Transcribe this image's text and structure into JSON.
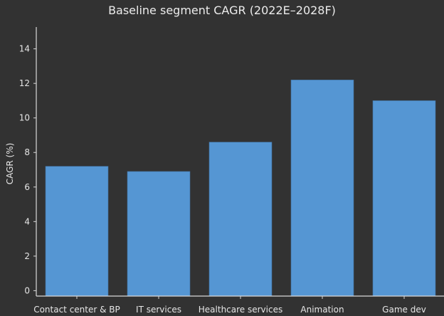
{
  "chart_data": {
    "type": "bar",
    "title": "Baseline segment CAGR (2022E–2028F)",
    "xlabel": "",
    "ylabel": "CAGR (%)",
    "categories": [
      "Contact center & BP",
      "IT services",
      "Healthcare services",
      "Animation",
      "Game dev"
    ],
    "values": [
      7.2,
      6.9,
      8.6,
      12.2,
      11.0
    ],
    "ylim": [
      0,
      15
    ],
    "yticks": [
      0,
      2,
      4,
      6,
      8,
      10,
      12,
      14
    ],
    "grid": false,
    "legend": null,
    "bar_color": "#5596d3",
    "background_color": "#323232"
  }
}
